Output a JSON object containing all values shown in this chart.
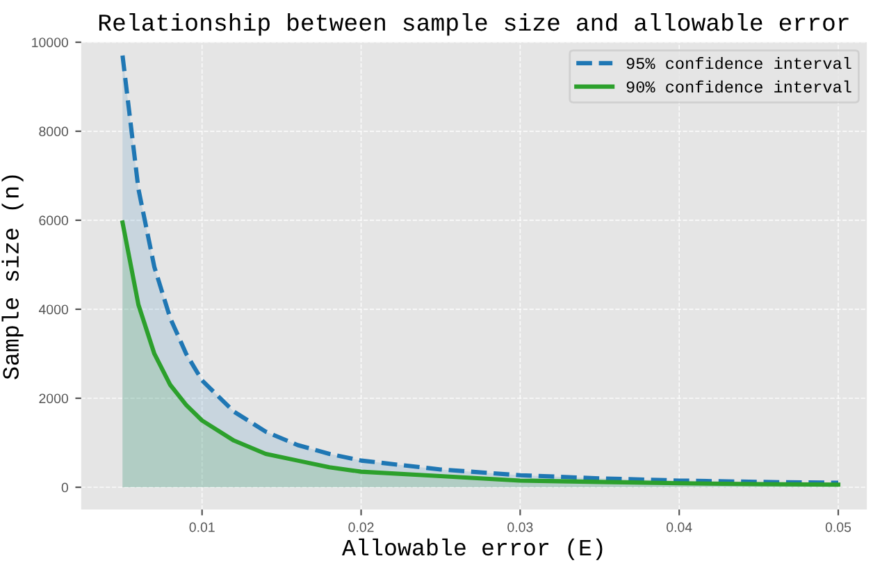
{
  "chart_data": {
    "type": "area",
    "title": "Relationship between sample size and allowable error",
    "xlabel": "Allowable error (E)",
    "ylabel": "Sample size (n)",
    "x": [
      0.005,
      0.006,
      0.007,
      0.008,
      0.009,
      0.01,
      0.012,
      0.014,
      0.016,
      0.018,
      0.02,
      0.025,
      0.03,
      0.035,
      0.04,
      0.045,
      0.05
    ],
    "series": [
      {
        "name": "95% confidence interval",
        "color": "#1f77b4",
        "line_style": "dashed",
        "values": [
          9700,
          6700,
          4950,
          3800,
          3000,
          2400,
          1700,
          1250,
          950,
          750,
          600,
          400,
          270,
          200,
          150,
          120,
          100
        ]
      },
      {
        "name": "90% confidence interval",
        "color": "#2ca02c",
        "line_style": "solid",
        "values": [
          5950,
          4100,
          3000,
          2300,
          1850,
          1500,
          1050,
          750,
          600,
          450,
          350,
          250,
          150,
          120,
          90,
          70,
          60
        ]
      }
    ],
    "xlim": [
      0.0024,
      0.0518
    ],
    "ylim": [
      -500,
      10000
    ],
    "xticks": [
      0.01,
      0.02,
      0.03,
      0.04,
      0.05
    ],
    "yticks": [
      0,
      2000,
      4000,
      6000,
      8000,
      10000
    ],
    "grid": true,
    "legend": "top right"
  }
}
